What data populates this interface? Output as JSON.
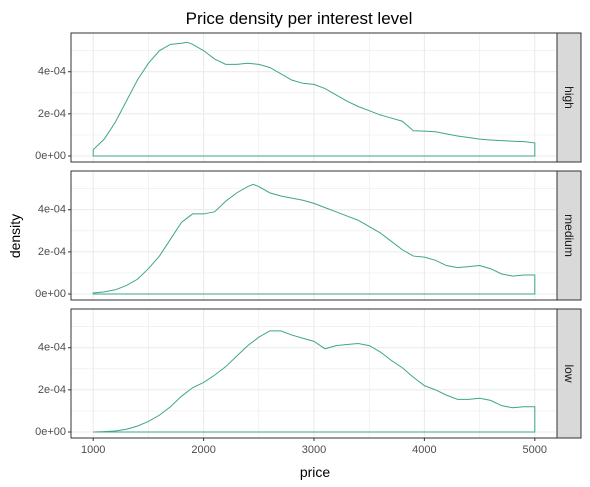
{
  "chart_data": {
    "type": "area",
    "title": "Price density per interest level",
    "xlabel": "price",
    "ylabel": "density",
    "xlim": [
      1000,
      5000
    ],
    "ylim": [
      0,
      0.00056
    ],
    "x_ticks": [
      1000,
      2000,
      3000,
      4000,
      5000
    ],
    "x_tick_labels": [
      "1000",
      "2000",
      "3000",
      "4000",
      "5000"
    ],
    "y_ticks": [
      0,
      0.0002,
      0.0004
    ],
    "y_tick_labels": [
      "0e+00",
      "2e-04",
      "4e-04"
    ],
    "grid": true,
    "colors": {
      "line": "#3fa58c",
      "strip_bg": "#d9d9d9",
      "grid": "#ebebeb",
      "panel_border": "#333333"
    },
    "facets": [
      {
        "label": "high",
        "x": [
          1000,
          1100,
          1200,
          1300,
          1400,
          1500,
          1600,
          1700,
          1800,
          1850,
          1900,
          2000,
          2100,
          2200,
          2300,
          2400,
          2500,
          2600,
          2700,
          2800,
          2900,
          3000,
          3100,
          3200,
          3300,
          3400,
          3500,
          3600,
          3700,
          3800,
          3900,
          4000,
          4100,
          4200,
          4300,
          4400,
          4500,
          4600,
          4700,
          4800,
          4900,
          5000
        ],
        "y": [
          3e-05,
          8e-05,
          0.00016,
          0.00026,
          0.00036,
          0.00044,
          0.0005,
          0.00053,
          0.000535,
          0.00054,
          0.00053,
          0.0005,
          0.00046,
          0.000435,
          0.000435,
          0.00044,
          0.000435,
          0.00042,
          0.00039,
          0.00036,
          0.000345,
          0.00034,
          0.00032,
          0.00029,
          0.00026,
          0.000235,
          0.000215,
          0.000195,
          0.00018,
          0.000165,
          0.00012,
          0.000118,
          0.000115,
          0.000105,
          9.5e-05,
          8.8e-05,
          8e-05,
          7.6e-05,
          7.3e-05,
          7e-05,
          6.8e-05,
          6.2e-05
        ]
      },
      {
        "label": "medium",
        "x": [
          1000,
          1100,
          1200,
          1300,
          1400,
          1500,
          1600,
          1700,
          1800,
          1900,
          2000,
          2100,
          2200,
          2300,
          2400,
          2450,
          2500,
          2600,
          2700,
          2800,
          2900,
          3000,
          3100,
          3200,
          3300,
          3400,
          3500,
          3600,
          3700,
          3800,
          3900,
          4000,
          4100,
          4200,
          4300,
          4400,
          4500,
          4600,
          4700,
          4800,
          4900,
          5000
        ],
        "y": [
          5e-06,
          1e-05,
          2e-05,
          4e-05,
          7e-05,
          0.00012,
          0.00018,
          0.00026,
          0.00034,
          0.00038,
          0.00038,
          0.00039,
          0.00044,
          0.00048,
          0.00051,
          0.00052,
          0.00051,
          0.00048,
          0.000465,
          0.000455,
          0.000445,
          0.00043,
          0.00041,
          0.00039,
          0.00037,
          0.00035,
          0.00032,
          0.00029,
          0.00025,
          0.00021,
          0.00018,
          0.000175,
          0.00016,
          0.000135,
          0.000125,
          0.00013,
          0.000135,
          0.00012,
          9.5e-05,
          8.5e-05,
          9e-05,
          9e-05
        ]
      },
      {
        "label": "low",
        "x": [
          1000,
          1100,
          1200,
          1300,
          1400,
          1500,
          1600,
          1700,
          1800,
          1900,
          2000,
          2100,
          2200,
          2300,
          2400,
          2500,
          2600,
          2700,
          2800,
          2900,
          3000,
          3100,
          3200,
          3300,
          3400,
          3500,
          3600,
          3700,
          3800,
          3900,
          4000,
          4100,
          4200,
          4300,
          4400,
          4500,
          4600,
          4700,
          4800,
          4900,
          5000
        ],
        "y": [
          0.0,
          2e-06,
          5e-06,
          1.3e-05,
          2.8e-05,
          5e-05,
          8e-05,
          0.00012,
          0.00017,
          0.00021,
          0.000235,
          0.00027,
          0.00031,
          0.00036,
          0.00041,
          0.00045,
          0.00048,
          0.00048,
          0.00046,
          0.000445,
          0.00043,
          0.000395,
          0.00041,
          0.000415,
          0.00042,
          0.00041,
          0.00038,
          0.00034,
          0.000305,
          0.00026,
          0.00022,
          0.0002,
          0.000175,
          0.000155,
          0.000155,
          0.00016,
          0.00015,
          0.000125,
          0.000115,
          0.00012,
          0.00012
        ]
      }
    ]
  }
}
